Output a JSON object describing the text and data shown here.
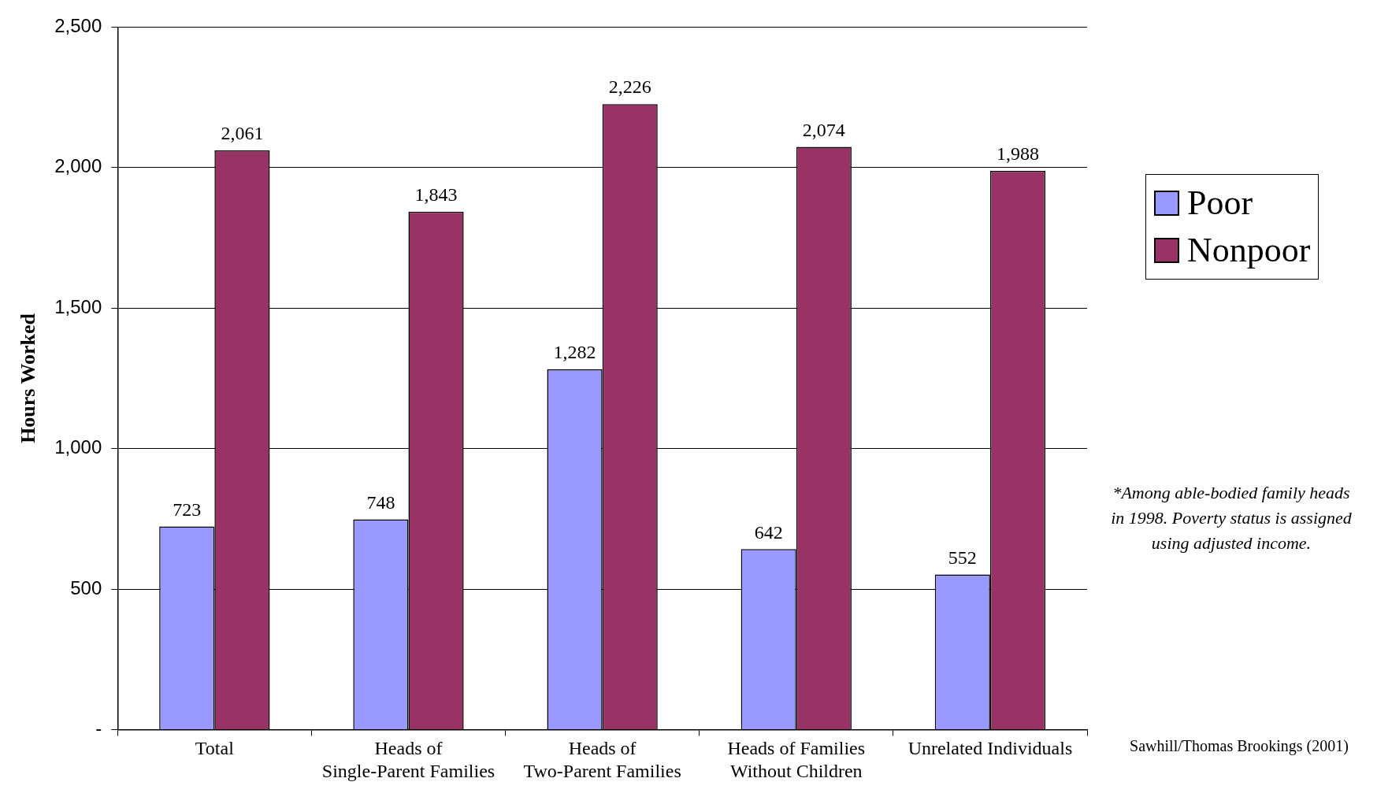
{
  "chart_data": {
    "type": "bar",
    "ylabel": "Hours Worked",
    "categories": [
      "Total",
      "Heads of Single-Parent Families",
      "Heads of Two-Parent Families",
      "Heads of Families Without Children",
      "Unrelated Individuals"
    ],
    "series": [
      {
        "name": "Poor",
        "color": "#9999ff",
        "values": [
          723,
          748,
          1282,
          642,
          552
        ],
        "value_labels": [
          "723",
          "748",
          "1,282",
          "642",
          "552"
        ]
      },
      {
        "name": "Nonpoor",
        "color": "#993366",
        "values": [
          2061,
          1843,
          2226,
          2074,
          1988
        ],
        "value_labels": [
          "2,061",
          "1,843",
          "2,226",
          "2,074",
          "1,988"
        ]
      }
    ],
    "ylim": [
      0,
      2500
    ],
    "yticks": [
      {
        "value": 0,
        "label": "-"
      },
      {
        "value": 500,
        "label": "500"
      },
      {
        "value": 1000,
        "label": "1,000"
      },
      {
        "value": 1500,
        "label": "1,500"
      },
      {
        "value": 2000,
        "label": "2,000"
      },
      {
        "value": 2500,
        "label": "2,500"
      }
    ],
    "grid": "y",
    "legend": "right",
    "annotations": [
      "*Among able-bodied family heads in 1998.  Poverty status is assigned using adjusted income.",
      "Sawhill/Thomas Brookings (2001)"
    ]
  }
}
